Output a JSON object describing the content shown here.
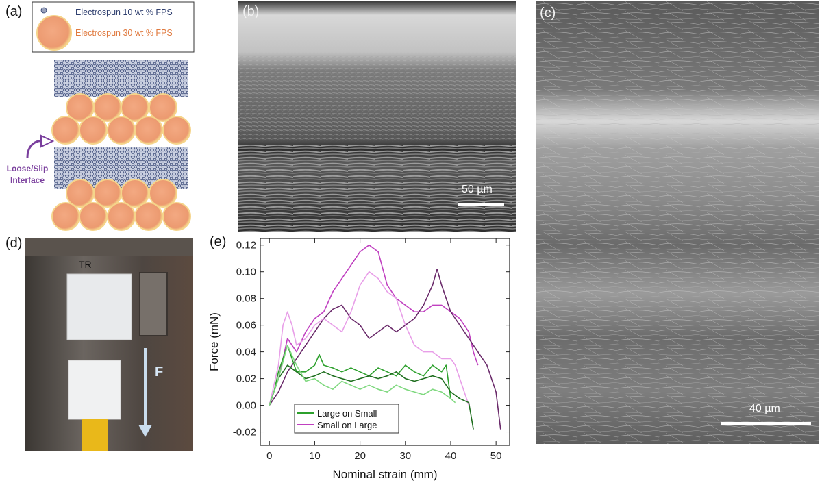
{
  "panels": {
    "a": {
      "label": "(a)",
      "legend_small": "Electrospun 10 wt % FPS",
      "legend_large": "Electrospun 30 wt % FPS",
      "interface_line1": "Loose/Slip",
      "interface_line2": "Interface",
      "colors": {
        "small": "#2f3f6f",
        "large": "#ef9f76",
        "accent": "#7a3f9d"
      }
    },
    "b": {
      "label": "(b)",
      "scale_bar": "50 µm"
    },
    "c": {
      "label": "(c)",
      "scale_bar": "40 µm"
    },
    "d": {
      "label": "(d)",
      "sample_mark": "TR",
      "force_label": "F"
    },
    "e": {
      "label": "(e)"
    }
  },
  "chart_data": {
    "type": "line",
    "xlabel": "Nominal strain (mm)",
    "ylabel": "Force (mN)",
    "xlim": [
      -2,
      53
    ],
    "ylim": [
      -0.03,
      0.125
    ],
    "xticks": [
      "0",
      "10",
      "20",
      "30",
      "40",
      "50"
    ],
    "yticks": [
      "0.12",
      "0.10",
      "0.08",
      "0.06",
      "0.04",
      "0.02",
      "0.00",
      "-0.02"
    ],
    "legend": [
      {
        "name": "Large on Small",
        "color": "#2ca02c"
      },
      {
        "name": "Small on Large",
        "color": "#c040c0"
      }
    ],
    "series": [
      {
        "name": "Small on Large (1)",
        "color": "#c040c0",
        "x": [
          0,
          2,
          4,
          6,
          8,
          10,
          12,
          14,
          16,
          18,
          20,
          22,
          24,
          26,
          28,
          30,
          32,
          34,
          36,
          38,
          40,
          42,
          44,
          45,
          46
        ],
        "y": [
          0.0,
          0.02,
          0.05,
          0.04,
          0.055,
          0.065,
          0.07,
          0.085,
          0.095,
          0.105,
          0.115,
          0.12,
          0.115,
          0.09,
          0.08,
          0.075,
          0.07,
          0.07,
          0.075,
          0.075,
          0.07,
          0.065,
          0.055,
          0.04,
          0.03
        ]
      },
      {
        "name": "Small on Large (2)",
        "color": "#6a2a6a",
        "x": [
          0,
          2,
          4,
          6,
          8,
          10,
          12,
          14,
          16,
          18,
          20,
          22,
          24,
          26,
          28,
          30,
          32,
          34,
          36,
          37,
          38,
          40,
          42,
          44,
          46,
          48,
          50,
          51
        ],
        "y": [
          0.0,
          0.01,
          0.025,
          0.035,
          0.045,
          0.055,
          0.065,
          0.072,
          0.075,
          0.065,
          0.06,
          0.05,
          0.055,
          0.06,
          0.055,
          0.06,
          0.065,
          0.075,
          0.09,
          0.102,
          0.09,
          0.07,
          0.06,
          0.05,
          0.04,
          0.03,
          0.01,
          -0.018
        ]
      },
      {
        "name": "Small on Large (3)",
        "color": "#e89ee8",
        "x": [
          0,
          2,
          3,
          4,
          5,
          6,
          8,
          10,
          12,
          14,
          16,
          18,
          20,
          22,
          24,
          26,
          28,
          30,
          32,
          34,
          36,
          38,
          40,
          41,
          42,
          43,
          44
        ],
        "y": [
          0.0,
          0.03,
          0.06,
          0.07,
          0.06,
          0.045,
          0.05,
          0.06,
          0.065,
          0.06,
          0.055,
          0.07,
          0.09,
          0.1,
          0.095,
          0.085,
          0.08,
          0.06,
          0.045,
          0.04,
          0.04,
          0.035,
          0.035,
          0.03,
          0.02,
          0.01,
          0.0
        ]
      },
      {
        "name": "Large on Small (1)",
        "color": "#2ca02c",
        "x": [
          0,
          1,
          2,
          3,
          4,
          5,
          6,
          8,
          10,
          11,
          12,
          14,
          16,
          18,
          20,
          22,
          24,
          26,
          28,
          30,
          32,
          34,
          36,
          38,
          39,
          40
        ],
        "y": [
          0.0,
          0.01,
          0.025,
          0.035,
          0.045,
          0.035,
          0.025,
          0.025,
          0.03,
          0.038,
          0.03,
          0.028,
          0.025,
          0.028,
          0.025,
          0.022,
          0.028,
          0.025,
          0.022,
          0.03,
          0.025,
          0.022,
          0.03,
          0.025,
          0.03,
          0.005
        ]
      },
      {
        "name": "Large on Small (2)",
        "color": "#1e6e1e",
        "x": [
          0,
          2,
          4,
          6,
          8,
          10,
          12,
          14,
          16,
          18,
          20,
          22,
          24,
          26,
          28,
          30,
          32,
          34,
          36,
          38,
          40,
          42,
          44,
          45
        ],
        "y": [
          0.0,
          0.02,
          0.03,
          0.025,
          0.02,
          0.022,
          0.025,
          0.022,
          0.02,
          0.018,
          0.02,
          0.022,
          0.02,
          0.022,
          0.025,
          0.02,
          0.018,
          0.02,
          0.022,
          0.02,
          0.01,
          0.005,
          0.002,
          -0.018
        ]
      },
      {
        "name": "Large on Small (3)",
        "color": "#7ed87e",
        "x": [
          0,
          2,
          4,
          6,
          8,
          10,
          12,
          14,
          16,
          18,
          20,
          22,
          24,
          26,
          28,
          30,
          32,
          34,
          36,
          38,
          40,
          41
        ],
        "y": [
          0.0,
          0.02,
          0.045,
          0.03,
          0.018,
          0.02,
          0.015,
          0.012,
          0.018,
          0.015,
          0.012,
          0.015,
          0.012,
          0.01,
          0.015,
          0.012,
          0.01,
          0.008,
          0.012,
          0.01,
          0.005,
          0.002
        ]
      }
    ]
  }
}
